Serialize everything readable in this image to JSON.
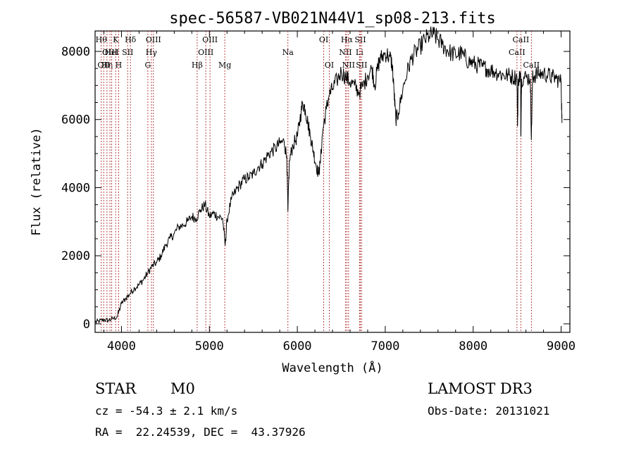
{
  "chart_data": {
    "type": "line",
    "title": "spec-56587-VB021N44V1_sp08-213.fits",
    "xlabel": "Wavelength (Å)",
    "ylabel": "Flux (relative)",
    "xlim": [
      3700,
      9100
    ],
    "ylim": [
      -250,
      8600
    ],
    "x_ticks": [
      4000,
      5000,
      6000,
      7000,
      8000,
      9000
    ],
    "y_ticks": [
      0,
      2000,
      4000,
      6000,
      8000
    ],
    "grid": false,
    "series": [
      {
        "points": [
          [
            3700,
            50
          ],
          [
            3750,
            80
          ],
          [
            3800,
            120
          ],
          [
            3850,
            100
          ],
          [
            3900,
            150
          ],
          [
            3950,
            200
          ],
          [
            4000,
            600
          ],
          [
            4050,
            750
          ],
          [
            4100,
            900
          ],
          [
            4150,
            1050
          ],
          [
            4200,
            1150
          ],
          [
            4250,
            1300
          ],
          [
            4300,
            1500
          ],
          [
            4350,
            1700
          ],
          [
            4400,
            1800
          ],
          [
            4450,
            2000
          ],
          [
            4500,
            2300
          ],
          [
            4550,
            2500
          ],
          [
            4600,
            2650
          ],
          [
            4650,
            2850
          ],
          [
            4700,
            2900
          ],
          [
            4750,
            3000
          ],
          [
            4800,
            3150
          ],
          [
            4850,
            3100
          ],
          [
            4900,
            3350
          ],
          [
            4950,
            3500
          ],
          [
            5000,
            3150
          ],
          [
            5050,
            3250
          ],
          [
            5100,
            3150
          ],
          [
            5150,
            3100
          ],
          [
            5180,
            2300
          ],
          [
            5200,
            3050
          ],
          [
            5250,
            3650
          ],
          [
            5300,
            3900
          ],
          [
            5350,
            4100
          ],
          [
            5400,
            4250
          ],
          [
            5450,
            4300
          ],
          [
            5500,
            4400
          ],
          [
            5550,
            4600
          ],
          [
            5600,
            4700
          ],
          [
            5650,
            4900
          ],
          [
            5700,
            5050
          ],
          [
            5750,
            5150
          ],
          [
            5800,
            5300
          ],
          [
            5850,
            5350
          ],
          [
            5880,
            4900
          ],
          [
            5893,
            3300
          ],
          [
            5910,
            4800
          ],
          [
            5950,
            5250
          ],
          [
            6000,
            5500
          ],
          [
            6030,
            6000
          ],
          [
            6060,
            6500
          ],
          [
            6090,
            6300
          ],
          [
            6120,
            5900
          ],
          [
            6150,
            5500
          ],
          [
            6180,
            5100
          ],
          [
            6210,
            4700
          ],
          [
            6240,
            4400
          ],
          [
            6260,
            4700
          ],
          [
            6290,
            5700
          ],
          [
            6330,
            6300
          ],
          [
            6360,
            6700
          ],
          [
            6400,
            6900
          ],
          [
            6450,
            7150
          ],
          [
            6500,
            7400
          ],
          [
            6550,
            7250
          ],
          [
            6600,
            7100
          ],
          [
            6650,
            7000
          ],
          [
            6700,
            6800
          ],
          [
            6750,
            7000
          ],
          [
            6800,
            7300
          ],
          [
            6850,
            7500
          ],
          [
            6880,
            7000
          ],
          [
            6920,
            7600
          ],
          [
            6950,
            7800
          ],
          [
            7000,
            7950
          ],
          [
            7050,
            7850
          ],
          [
            7080,
            7600
          ],
          [
            7100,
            6800
          ],
          [
            7120,
            6000
          ],
          [
            7150,
            6200
          ],
          [
            7200,
            6900
          ],
          [
            7250,
            7400
          ],
          [
            7300,
            7800
          ],
          [
            7350,
            8000
          ],
          [
            7400,
            8150
          ],
          [
            7450,
            8350
          ],
          [
            7500,
            8450
          ],
          [
            7550,
            8500
          ],
          [
            7600,
            8350
          ],
          [
            7650,
            8200
          ],
          [
            7700,
            8050
          ],
          [
            7750,
            7950
          ],
          [
            7800,
            7900
          ],
          [
            7850,
            7950
          ],
          [
            7900,
            7850
          ],
          [
            7950,
            7700
          ],
          [
            8000,
            7650
          ],
          [
            8050,
            7600
          ],
          [
            8100,
            7550
          ],
          [
            8150,
            7500
          ],
          [
            8200,
            7450
          ],
          [
            8250,
            7400
          ],
          [
            8300,
            7350
          ],
          [
            8350,
            7300
          ],
          [
            8400,
            7300
          ],
          [
            8450,
            7250
          ],
          [
            8498,
            7250
          ],
          [
            8505,
            5800
          ],
          [
            8512,
            7200
          ],
          [
            8540,
            7300
          ],
          [
            8542,
            5500
          ],
          [
            8550,
            7200
          ],
          [
            8600,
            7250
          ],
          [
            8650,
            7200
          ],
          [
            8662,
            5400
          ],
          [
            8675,
            7200
          ],
          [
            8700,
            7300
          ],
          [
            8750,
            7350
          ],
          [
            8800,
            7350
          ],
          [
            8850,
            7300
          ],
          [
            8900,
            7250
          ],
          [
            8950,
            7200
          ],
          [
            9000,
            7100
          ],
          [
            9010,
            5900
          ]
        ]
      }
    ],
    "line_markers": [
      {
        "wl": 3770,
        "label": "Hθ",
        "row": 0
      },
      {
        "wl": 3798,
        "label": "OII",
        "row": 2
      },
      {
        "wl": 3835,
        "label": "Hη",
        "row": 2
      },
      {
        "wl": 3869,
        "label": "OIII",
        "row": 1
      },
      {
        "wl": 3889,
        "label": "HeI",
        "row": 1
      },
      {
        "wl": 3934,
        "label": "K",
        "row": 0
      },
      {
        "wl": 3968,
        "label": "H",
        "row": 2
      },
      {
        "wl": 4070,
        "label": "SII",
        "row": 1
      },
      {
        "wl": 4102,
        "label": "Hδ",
        "row": 0
      },
      {
        "wl": 4300,
        "label": "G",
        "row": 2
      },
      {
        "wl": 4340,
        "label": "Hγ",
        "row": 1
      },
      {
        "wl": 4363,
        "label": "OIII",
        "row": 0
      },
      {
        "wl": 4861,
        "label": "Hβ",
        "row": 2
      },
      {
        "wl": 4959,
        "label": "OIII",
        "row": 1
      },
      {
        "wl": 5007,
        "label": "OIII",
        "row": 0
      },
      {
        "wl": 5175,
        "label": "Mg",
        "row": 2
      },
      {
        "wl": 5893,
        "label": "Na",
        "row": 1
      },
      {
        "wl": 6300,
        "label": "OI",
        "row": 0
      },
      {
        "wl": 6363,
        "label": "OI",
        "row": 2
      },
      {
        "wl": 6548,
        "label": "NII",
        "row": 1
      },
      {
        "wl": 6563,
        "label": "Hα",
        "row": 0
      },
      {
        "wl": 6583,
        "label": "NII",
        "row": 2
      },
      {
        "wl": 6707,
        "label": "Li",
        "row": 1
      },
      {
        "wl": 6716,
        "label": "SII",
        "row": 0
      },
      {
        "wl": 6731,
        "label": "SII",
        "row": 2
      },
      {
        "wl": 8498,
        "label": "CaII",
        "row": 1
      },
      {
        "wl": 8542,
        "label": "CaII",
        "row": 0
      },
      {
        "wl": 8662,
        "label": "CaII",
        "row": 2
      }
    ]
  },
  "info": {
    "class_label": "STAR",
    "subclass": "M0",
    "survey": "LAMOST DR3",
    "cz_text": "cz = -54.3 ± 2.1 km/s",
    "obs_date": "Obs-Date: 20131021",
    "coords": "RA =  22.24539, DEC =  43.37926"
  },
  "colors": {
    "spectrum": "#000000",
    "marker_line": "#b03030",
    "axis": "#000000",
    "background": "#ffffff"
  }
}
